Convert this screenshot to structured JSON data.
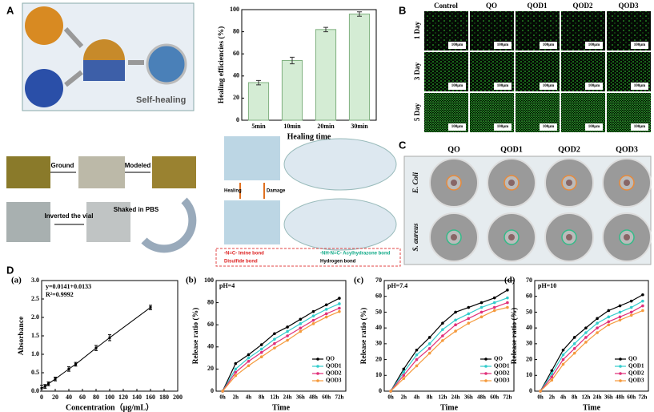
{
  "panel_labels": [
    "A",
    "B",
    "C",
    "D"
  ],
  "panel_a": {
    "photo_label": "Self-healing",
    "steps": [
      "Ground",
      "Modeled",
      "Shaked in PBS",
      "Inverted the vial"
    ],
    "diagram": {
      "healing": "Healing",
      "damage": "Damage",
      "legend": [
        "-N=C- Imine bond",
        "Disulfide bond",
        "-NH-N=C- Acylhydrazone bond",
        "Hydrogen bond"
      ]
    }
  },
  "panel_b": {
    "columns": [
      "Control",
      "QO",
      "QOD1",
      "QOD2",
      "QOD3"
    ],
    "rows": [
      "1 Day",
      "3 Day",
      "5 Day"
    ],
    "scale_bar": "100μm"
  },
  "panel_c": {
    "columns": [
      "QO",
      "QOD1",
      "QOD2",
      "QOD3"
    ],
    "rows": [
      "E. Coli",
      "S. aureus"
    ]
  },
  "chart_data": [
    {
      "type": "bar",
      "ylabel": "Healing efficiencies (%)",
      "xlabel": "Healing time",
      "categories": [
        "5min",
        "10min",
        "20min",
        "30min"
      ],
      "values": [
        34,
        54,
        82,
        96
      ],
      "errors": [
        2,
        3,
        2,
        2
      ],
      "color": "#d4ecd4",
      "ylim": [
        0,
        100
      ],
      "yticks": [
        0,
        20,
        40,
        60,
        80,
        100
      ]
    },
    {
      "type": "scatter",
      "panel": "(a)",
      "xlabel": "Concentration（μg/mL）",
      "ylabel": "Absorbance",
      "annotations": [
        "y=0.0141+0.0133",
        "R²=0.9992"
      ],
      "x": [
        0,
        5,
        10,
        20,
        40,
        50,
        80,
        100,
        160
      ],
      "values": [
        0.08,
        0.13,
        0.2,
        0.33,
        0.6,
        0.73,
        1.17,
        1.45,
        2.27
      ],
      "errors": [
        0.08,
        0.05,
        0.05,
        0.05,
        0.06,
        0.05,
        0.07,
        0.08,
        0.06
      ],
      "color": "#000000",
      "xlim": [
        0,
        200
      ],
      "xticks": [
        0,
        20,
        40,
        60,
        80,
        100,
        120,
        140,
        160,
        180,
        200
      ],
      "ylim": [
        0,
        3
      ],
      "yticks": [
        {
          "value": 0,
          "label": "0.0"
        },
        0.5,
        {
          "value": 1,
          "label": "1.0"
        },
        1.5,
        {
          "value": 2,
          "label": "2.0"
        },
        2.5,
        {
          "value": 3,
          "label": "3.0"
        }
      ]
    },
    {
      "type": "line",
      "panel": "(b)",
      "annotation": "pH=4",
      "xlabel": "Time",
      "ylabel": "Release ratio (%)",
      "categories": [
        "0h",
        "2h",
        "4h",
        "8h",
        "12h",
        "24h",
        "36h",
        "48h",
        "60h",
        "72h"
      ],
      "ylim": [
        0,
        100
      ],
      "yticks": [
        0,
        20,
        40,
        60,
        80,
        100
      ],
      "series": [
        {
          "name": "QO",
          "color": "#000000",
          "values": [
            0,
            25,
            33,
            42,
            52,
            58,
            65,
            72,
            78,
            84
          ]
        },
        {
          "name": "QOD1",
          "color": "#33cccc",
          "values": [
            0,
            20,
            30,
            38,
            47,
            54,
            61,
            68,
            74,
            79
          ]
        },
        {
          "name": "QOD2",
          "color": "#e0307a",
          "values": [
            0,
            17,
            27,
            35,
            43,
            50,
            57,
            64,
            70,
            75
          ]
        },
        {
          "name": "QOD3",
          "color": "#f59a3c",
          "values": [
            0,
            14,
            23,
            31,
            39,
            46,
            54,
            61,
            67,
            72
          ]
        }
      ]
    },
    {
      "type": "line",
      "panel": "(c)",
      "annotation": "pH=7.4",
      "xlabel": "Time",
      "ylabel": "Release ratio (%)",
      "categories": [
        "0h",
        "2h",
        "4h",
        "8h",
        "12h",
        "24h",
        "36h",
        "48h",
        "60h",
        "72h"
      ],
      "ylim": [
        0,
        70
      ],
      "yticks": [
        0,
        10,
        20,
        30,
        40,
        50,
        60,
        70
      ],
      "series": [
        {
          "name": "QO",
          "color": "#000000",
          "values": [
            0,
            14,
            26,
            34,
            43,
            50,
            53,
            56,
            59,
            64
          ]
        },
        {
          "name": "QOD1",
          "color": "#33cccc",
          "values": [
            0,
            12,
            23,
            30,
            39,
            45,
            49,
            53,
            56,
            59
          ]
        },
        {
          "name": "QOD2",
          "color": "#e0307a",
          "values": [
            0,
            10,
            20,
            27,
            35,
            42,
            46,
            50,
            53,
            56
          ]
        },
        {
          "name": "QOD3",
          "color": "#f59a3c",
          "values": [
            0,
            8,
            16,
            24,
            32,
            38,
            43,
            47,
            51,
            53
          ]
        }
      ]
    },
    {
      "type": "line",
      "panel": "(d)",
      "annotation": "pH=10",
      "xlabel": "Time",
      "ylabel": "Release ratio (%)",
      "categories": [
        "0h",
        "2h",
        "4h",
        "8h",
        "12h",
        "24h",
        "36h",
        "48h",
        "60h",
        "72h"
      ],
      "ylim": [
        0,
        70
      ],
      "yticks": [
        0,
        10,
        20,
        30,
        40,
        50,
        60,
        70
      ],
      "series": [
        {
          "name": "QO",
          "color": "#000000",
          "values": [
            0,
            13,
            26,
            34,
            40,
            46,
            51,
            54,
            57,
            61
          ]
        },
        {
          "name": "QOD1",
          "color": "#33cccc",
          "values": [
            0,
            11,
            23,
            30,
            37,
            43,
            47,
            50,
            53,
            57
          ]
        },
        {
          "name": "QOD2",
          "color": "#e0307a",
          "values": [
            0,
            9,
            20,
            27,
            34,
            40,
            44,
            47,
            50,
            54
          ]
        },
        {
          "name": "QOD3",
          "color": "#f59a3c",
          "values": [
            0,
            7,
            17,
            24,
            31,
            37,
            42,
            45,
            48,
            51
          ]
        }
      ]
    }
  ]
}
